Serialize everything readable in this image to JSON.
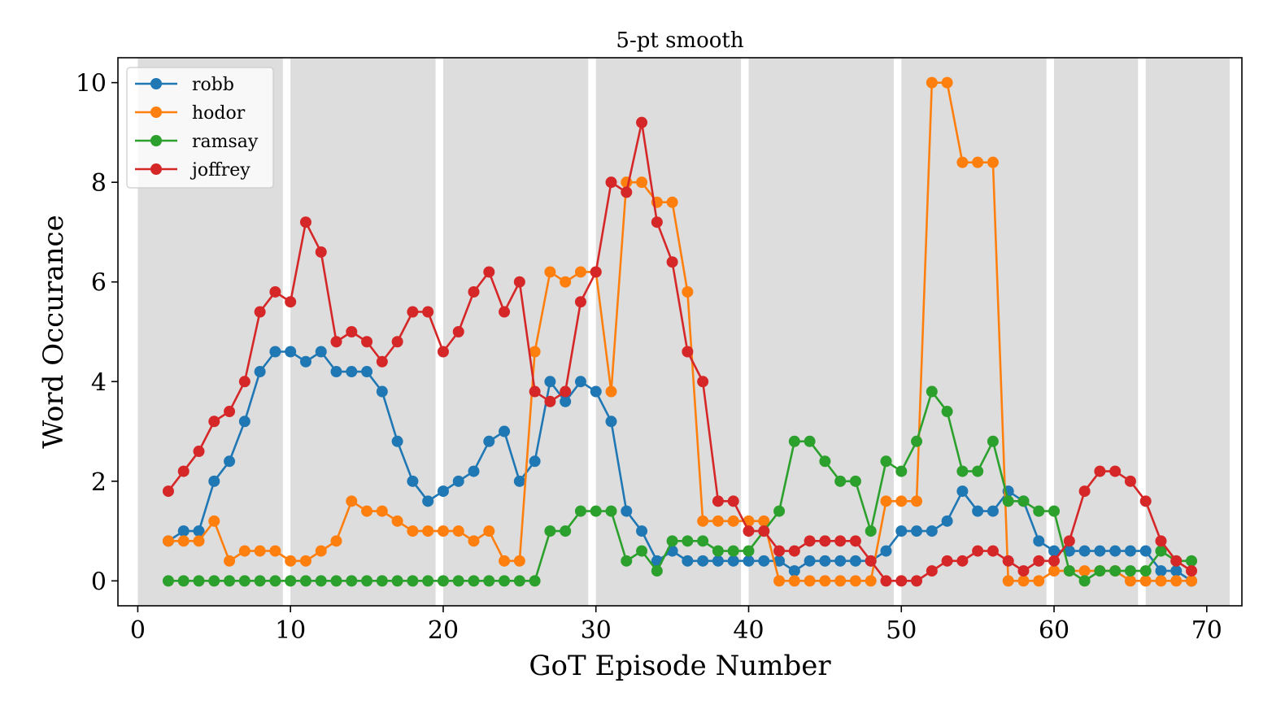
{
  "chart_data": {
    "type": "line",
    "title": "5-pt smooth",
    "xlabel": "GoT Episode Number",
    "ylabel": "Word Occurance",
    "xlim": [
      -1.3,
      72.3
    ],
    "ylim": [
      -0.5,
      10.5
    ],
    "xticks": [
      0,
      10,
      20,
      30,
      40,
      50,
      60,
      70
    ],
    "yticks": [
      0,
      2,
      4,
      6,
      8,
      10
    ],
    "xtick_labels": [
      "0",
      "10",
      "20",
      "30",
      "40",
      "50",
      "60",
      "70"
    ],
    "ytick_labels": [
      "0",
      "2",
      "4",
      "6",
      "8",
      "10"
    ],
    "grid": false,
    "legend_position": "top-left",
    "season_bands": [
      [
        0,
        9.5
      ],
      [
        10,
        19.5
      ],
      [
        20,
        29.5
      ],
      [
        30,
        39.5
      ],
      [
        40,
        49.5
      ],
      [
        50,
        59.5
      ],
      [
        60,
        65.5
      ],
      [
        66,
        71.5
      ]
    ],
    "band_color": "#dddddd",
    "x": [
      2,
      3,
      4,
      5,
      6,
      7,
      8,
      9,
      10,
      11,
      12,
      13,
      14,
      15,
      16,
      17,
      18,
      19,
      20,
      21,
      22,
      23,
      24,
      25,
      26,
      27,
      28,
      29,
      30,
      31,
      32,
      33,
      34,
      35,
      36,
      37,
      38,
      39,
      40,
      41,
      42,
      43,
      44,
      45,
      46,
      47,
      48,
      49,
      50,
      51,
      52,
      53,
      54,
      55,
      56,
      57,
      58,
      59,
      60,
      61,
      62,
      63,
      64,
      65,
      66,
      67,
      68,
      69
    ],
    "series": [
      {
        "name": "robb",
        "color": "#1f77b4",
        "values": [
          0.8,
          1.0,
          1.0,
          2.0,
          2.4,
          3.2,
          4.2,
          4.6,
          4.6,
          4.4,
          4.6,
          4.2,
          4.2,
          4.2,
          3.8,
          2.8,
          2.0,
          1.6,
          1.8,
          2.0,
          2.2,
          2.8,
          3.0,
          2.0,
          2.4,
          4.0,
          3.6,
          4.0,
          3.8,
          3.2,
          1.4,
          1.0,
          0.4,
          0.6,
          0.4,
          0.4,
          0.4,
          0.4,
          0.4,
          0.4,
          0.4,
          0.2,
          0.4,
          0.4,
          0.4,
          0.4,
          0.4,
          0.6,
          1.0,
          1.0,
          1.0,
          1.2,
          1.8,
          1.4,
          1.4,
          1.8,
          1.6,
          0.8,
          0.6,
          0.6,
          0.6,
          0.6,
          0.6,
          0.6,
          0.6,
          0.2,
          0.2,
          0.0
        ]
      },
      {
        "name": "hodor",
        "color": "#ff7f0e",
        "values": [
          0.8,
          0.8,
          0.8,
          1.2,
          0.4,
          0.6,
          0.6,
          0.6,
          0.4,
          0.4,
          0.6,
          0.8,
          1.6,
          1.4,
          1.4,
          1.2,
          1.0,
          1.0,
          1.0,
          1.0,
          0.8,
          1.0,
          0.4,
          0.4,
          4.6,
          6.2,
          6.0,
          6.2,
          6.2,
          3.8,
          8.0,
          8.0,
          7.6,
          7.6,
          5.8,
          1.2,
          1.2,
          1.2,
          1.2,
          1.2,
          0.0,
          0.0,
          0.0,
          0.0,
          0.0,
          0.0,
          0.0,
          1.6,
          1.6,
          1.6,
          10.0,
          10.0,
          8.4,
          8.4,
          8.4,
          0.0,
          0.0,
          0.0,
          0.2,
          0.2,
          0.2,
          0.2,
          0.2,
          0.0,
          0.0,
          0.0,
          0.0,
          0.0
        ]
      },
      {
        "name": "ramsay",
        "color": "#2ca02c",
        "values": [
          0.0,
          0.0,
          0.0,
          0.0,
          0.0,
          0.0,
          0.0,
          0.0,
          0.0,
          0.0,
          0.0,
          0.0,
          0.0,
          0.0,
          0.0,
          0.0,
          0.0,
          0.0,
          0.0,
          0.0,
          0.0,
          0.0,
          0.0,
          0.0,
          0.0,
          1.0,
          1.0,
          1.4,
          1.4,
          1.4,
          0.4,
          0.6,
          0.2,
          0.8,
          0.8,
          0.8,
          0.6,
          0.6,
          0.6,
          1.0,
          1.4,
          2.8,
          2.8,
          2.4,
          2.0,
          2.0,
          1.0,
          2.4,
          2.2,
          2.8,
          3.8,
          3.4,
          2.2,
          2.2,
          2.8,
          1.6,
          1.6,
          1.4,
          1.4,
          0.2,
          0.0,
          0.2,
          0.2,
          0.2,
          0.2,
          0.6,
          0.4,
          0.4
        ]
      },
      {
        "name": "joffrey",
        "color": "#d62728",
        "values": [
          1.8,
          2.2,
          2.6,
          3.2,
          3.4,
          4.0,
          5.4,
          5.8,
          5.6,
          7.2,
          6.6,
          4.8,
          5.0,
          4.8,
          4.4,
          4.8,
          5.4,
          5.4,
          4.6,
          5.0,
          5.8,
          6.2,
          5.4,
          6.0,
          3.8,
          3.6,
          3.8,
          5.6,
          6.2,
          8.0,
          7.8,
          9.2,
          7.2,
          6.4,
          4.6,
          4.0,
          1.6,
          1.6,
          1.0,
          1.0,
          0.6,
          0.6,
          0.8,
          0.8,
          0.8,
          0.8,
          0.4,
          0.0,
          0.0,
          0.0,
          0.2,
          0.4,
          0.4,
          0.6,
          0.6,
          0.4,
          0.2,
          0.4,
          0.4,
          0.8,
          1.8,
          2.2,
          2.2,
          2.0,
          1.6,
          0.8,
          0.4,
          0.2
        ]
      }
    ]
  }
}
